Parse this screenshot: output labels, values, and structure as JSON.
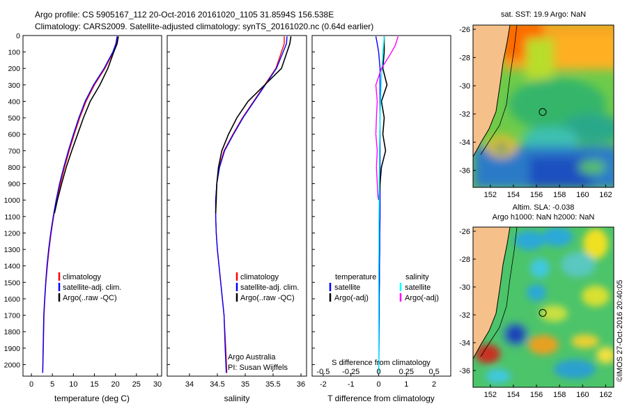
{
  "header": {
    "line1": "Argo profile: CS 5905167_112 20-Oct-2016 20161020_1105 31.8594S 156.538E",
    "line2": "Climatology: CARS2009. Satellite-adjusted climatology: synTS_20161020.nc (0.64d earlier)"
  },
  "colors": {
    "climatology": "#ff0000",
    "satellite": "#0000ff",
    "argo": "#000000",
    "salinity_satellite": "#00ffff",
    "salinity_argo": "#ff00ff",
    "land": "#f5c08a"
  },
  "credit": "©IMOS 27-Oct-2016 20:40:05",
  "chart_data": [
    {
      "type": "line",
      "name": "temperature-profile",
      "xlabel": "temperature (deg C)",
      "ylabel": "",
      "xlim": [
        -2,
        31
      ],
      "ylim": [
        2070,
        0
      ],
      "xticks": [
        0,
        5,
        10,
        15,
        20,
        25,
        30
      ],
      "yticks": [
        0,
        100,
        200,
        300,
        400,
        500,
        600,
        700,
        800,
        900,
        1000,
        1100,
        1200,
        1300,
        1400,
        1500,
        1600,
        1700,
        1800,
        1900,
        2000
      ],
      "legend": [
        "climatology",
        "satellite-adj. clim.",
        "Argo(..raw -QC)"
      ],
      "series": [
        {
          "name": "climatology",
          "color": "#ff0000",
          "x": [
            20.5,
            20.2,
            19.5,
            17.5,
            15,
            13,
            11.5,
            10.2,
            9.0,
            7.9,
            6.9,
            6.0,
            5.3,
            4.7,
            4.2,
            3.8,
            3.45,
            3.2,
            3.0,
            2.85,
            2.7
          ],
          "y": [
            5,
            50,
            100,
            200,
            300,
            400,
            500,
            600,
            700,
            800,
            900,
            1000,
            1100,
            1200,
            1300,
            1400,
            1500,
            1600,
            1700,
            1900,
            2050
          ]
        },
        {
          "name": "satellite-adj. clim.",
          "color": "#0000ff",
          "x": [
            20.4,
            20.1,
            19.4,
            17.3,
            14.8,
            12.8,
            11.3,
            10.0,
            8.8,
            7.7,
            6.7,
            5.9,
            5.2,
            4.6,
            4.1,
            3.7,
            3.4,
            3.15,
            2.95,
            2.8,
            2.7
          ],
          "y": [
            5,
            50,
            100,
            200,
            300,
            400,
            500,
            600,
            700,
            800,
            900,
            1000,
            1100,
            1200,
            1300,
            1400,
            1500,
            1600,
            1700,
            1900,
            2050
          ]
        },
        {
          "name": "Argo(..raw -QC)",
          "color": "#000000",
          "x": [
            20.7,
            20.4,
            19.6,
            18.2,
            16.3,
            14.0,
            12.4,
            11.0,
            9.6,
            8.3,
            7.2,
            6.2,
            5.5
          ],
          "y": [
            5,
            50,
            100,
            200,
            300,
            400,
            500,
            600,
            700,
            800,
            900,
            1000,
            1080
          ]
        }
      ]
    },
    {
      "type": "line",
      "name": "salinity-profile",
      "xlabel": "salinity",
      "ylabel": "",
      "xlim": [
        33.6,
        36.1
      ],
      "ylim": [
        2070,
        0
      ],
      "xticks": [
        34,
        34.5,
        35,
        35.5,
        36
      ],
      "legend": [
        "climatology",
        "satellite-adj. clim.",
        "Argo(..raw -QC)"
      ],
      "annotation": [
        "Argo Australia",
        "PI: Susan Wijffels"
      ],
      "series": [
        {
          "name": "climatology",
          "color": "#ff0000",
          "x": [
            35.7,
            35.7,
            35.65,
            35.55,
            35.35,
            35.15,
            34.95,
            34.78,
            34.62,
            34.53,
            34.49,
            34.47,
            34.47,
            34.48,
            34.5,
            34.53,
            34.56,
            34.59,
            34.62,
            34.65,
            34.67
          ],
          "y": [
            5,
            50,
            100,
            200,
            300,
            400,
            500,
            600,
            700,
            800,
            900,
            1000,
            1100,
            1200,
            1300,
            1400,
            1500,
            1600,
            1700,
            1900,
            2050
          ]
        },
        {
          "name": "satellite-adj. clim.",
          "color": "#0000ff",
          "x": [
            35.75,
            35.74,
            35.68,
            35.56,
            35.36,
            35.16,
            34.96,
            34.79,
            34.63,
            34.54,
            34.49,
            34.47,
            34.47,
            34.48,
            34.5,
            34.53,
            34.56,
            34.59,
            34.62,
            34.64,
            34.66
          ],
          "y": [
            5,
            50,
            100,
            200,
            300,
            400,
            500,
            600,
            700,
            800,
            900,
            1000,
            1100,
            1200,
            1300,
            1400,
            1500,
            1600,
            1700,
            1900,
            2050
          ]
        },
        {
          "name": "Argo(..raw -QC)",
          "color": "#000000",
          "x": [
            35.82,
            35.8,
            35.75,
            35.65,
            35.35,
            35.05,
            34.85,
            34.7,
            34.58,
            34.52,
            34.49,
            34.48,
            34.47
          ],
          "y": [
            5,
            50,
            100,
            200,
            300,
            400,
            500,
            600,
            700,
            800,
            900,
            1000,
            1080
          ]
        }
      ]
    },
    {
      "type": "line",
      "name": "difference-profile",
      "xlabel": "T difference from climatology",
      "xlabel_top": "S difference from climatology",
      "xlim": [
        -2.4,
        2.6
      ],
      "ylim": [
        2070,
        0
      ],
      "xticks_bottom": [
        -2,
        -1,
        0,
        1,
        2
      ],
      "xticks_top": [
        "-0.5",
        "-0.25",
        "0",
        "0.25",
        "0.5"
      ],
      "legend_temperature_title": "temperature",
      "legend_salinity_title": "salinity",
      "legend": [
        "satellite",
        "Argo(-adj)",
        "satellite",
        "Argo(-adj)"
      ],
      "series": [
        {
          "name": "temperature satellite",
          "color": "#0000ff",
          "x": [
            -0.1,
            -0.05,
            0,
            0.05,
            0.05,
            0.05,
            0.05,
            0.05,
            0.05,
            0.05,
            0.05,
            0.05,
            0.05,
            0.04,
            0.04,
            0.03,
            0.03,
            0.02,
            0.02,
            0.01,
            0.0
          ],
          "y": [
            5,
            50,
            100,
            200,
            300,
            400,
            500,
            600,
            700,
            800,
            900,
            1000,
            1100,
            1200,
            1300,
            1400,
            1500,
            1600,
            1700,
            1900,
            2050
          ]
        },
        {
          "name": "temperature Argo(-adj)",
          "color": "#000000",
          "x": [
            0.2,
            0.2,
            0.15,
            0.3,
            0.1,
            0.2,
            0.15,
            0.25,
            0.1,
            0.0
          ],
          "y": [
            5,
            100,
            200,
            300,
            400,
            500,
            600,
            700,
            800,
            1000
          ]
        },
        {
          "name": "salinity satellite",
          "color": "#00ffff",
          "x": [
            0.2,
            0.18,
            0.15,
            0.12,
            0.09,
            0.07,
            0.05,
            0.04,
            0.03,
            0.03,
            0.02,
            0.02,
            0.01,
            0.01,
            0.01,
            0.0,
            0.0,
            0.0,
            0.0,
            0.0,
            0.0
          ],
          "y": [
            5,
            50,
            100,
            200,
            300,
            400,
            500,
            600,
            700,
            800,
            900,
            1000,
            1100,
            1200,
            1300,
            1400,
            1500,
            1600,
            1700,
            1900,
            2050
          ]
        },
        {
          "name": "salinity Argo(-adj)",
          "color": "#ff00ff",
          "x": [
            0.7,
            0.6,
            0.4,
            0.1,
            -0.1,
            -0.05,
            -0.08,
            -0.1,
            -0.05,
            -0.08,
            -0.05,
            -0.02
          ],
          "y": [
            5,
            60,
            120,
            200,
            300,
            400,
            500,
            600,
            700,
            800,
            900,
            990
          ]
        }
      ]
    },
    {
      "type": "heatmap",
      "name": "sst-map",
      "title": "sat. SST: 19.9 Argo: NaN",
      "xticks": [
        152,
        154,
        156,
        158,
        160,
        162
      ],
      "yticks": [
        -26,
        -28,
        -30,
        -32,
        -34,
        -36
      ],
      "marker": {
        "lon": 156.538,
        "lat": -31.8594
      }
    },
    {
      "type": "heatmap",
      "name": "sla-map",
      "title_line1": "Altim. SLA: -0.038",
      "title_line2": "Argo h1000: NaN h2000: NaN",
      "xticks": [
        152,
        154,
        156,
        158,
        160,
        162
      ],
      "yticks": [
        -26,
        -28,
        -30,
        -32,
        -34,
        -36
      ],
      "marker": {
        "lon": 156.538,
        "lat": -31.8594
      }
    }
  ]
}
